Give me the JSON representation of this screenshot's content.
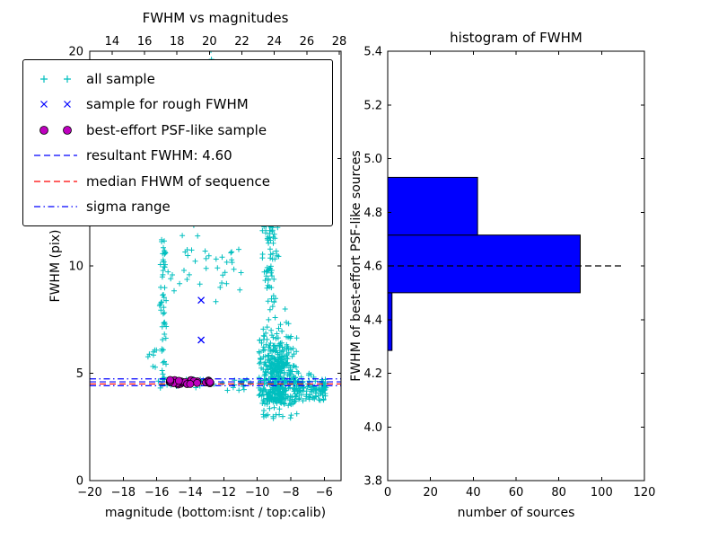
{
  "colors": {
    "all_sample": "#00bfbf",
    "rough_sample": "#0000ff",
    "psf_fill": "#bf00bf",
    "psf_edge": "#000000",
    "hist_fill": "#0000ff",
    "hist_edge": "#000000",
    "axis": "#000000"
  },
  "legend": {
    "items": [
      {
        "label": "all sample",
        "marker": "plus",
        "color": "#00bfbf"
      },
      {
        "label": "sample for rough FWHM",
        "marker": "cross",
        "color": "#0000ff"
      },
      {
        "label": "best-effort PSF-like sample",
        "marker": "circle",
        "color": "#bf00bf"
      },
      {
        "label": "resultant FWHM: 4.60",
        "marker": "dashed",
        "color": "#0000ff"
      },
      {
        "label": "median FHWM of sequence",
        "marker": "dashed",
        "color": "#ff0000"
      },
      {
        "label": "sigma range",
        "marker": "dashdot",
        "color": "#0000ff"
      }
    ]
  },
  "chart_data": [
    {
      "type": "scatter",
      "title": "FWHM vs magnitudes",
      "xlabel": "magnitude (bottom:isnt / top:calib)",
      "ylabel": "FWHM (pix)",
      "x_range": [
        -20,
        -5
      ],
      "y_range": [
        0,
        20
      ],
      "top_range": [
        12.62,
        28.11
      ],
      "x_ticks": {
        "values": [
          -20,
          -18,
          -16,
          -14,
          -12,
          -10,
          -8,
          -6
        ],
        "labels": [
          "−20",
          "−18",
          "−16",
          "−14",
          "−12",
          "−10",
          "−8",
          "−6"
        ]
      },
      "y_ticks": {
        "values": [
          0,
          5,
          10,
          15,
          20
        ],
        "labels": [
          "0",
          "5",
          "10",
          "15",
          "20"
        ]
      },
      "top_ticks": {
        "values": [
          14,
          16,
          18,
          20,
          22,
          24,
          26,
          28
        ],
        "labels": [
          "14",
          "16",
          "18",
          "20",
          "22",
          "24",
          "26",
          "28"
        ]
      },
      "hlines": [
        {
          "name": "resultant-fwhm",
          "y": 4.6,
          "style": "dashed",
          "color": "#0000ff"
        },
        {
          "name": "median-fwhm",
          "y": 4.5,
          "style": "dashed",
          "color": "#ff0000"
        },
        {
          "name": "sigma-low",
          "y": 4.42,
          "style": "dashdot",
          "color": "#0000ff"
        },
        {
          "name": "sigma-high",
          "y": 4.74,
          "style": "dashdot",
          "color": "#0000ff"
        }
      ],
      "series": [
        {
          "name": "all sample",
          "marker": "plus",
          "color": "#00bfbf",
          "clusters": [
            {
              "count": 55,
              "mag": {
                "c": -15.62,
                "sd": 0.09,
                "min": -15.85,
                "max": -15.38
              },
              "fwhm": [
                4.35,
                11.6
              ]
            },
            {
              "count": 8,
              "mag": [
                -16.6,
                -15.85
              ],
              "fwhm": [
                4.6,
                6.6
              ]
            },
            {
              "count": 50,
              "mag": [
                -15.9,
                -10.6
              ],
              "fwhm": [
                8.2,
                12.6
              ]
            },
            {
              "count": 40,
              "mag": [
                -16.3,
                -10.4
              ],
              "fwhm": {
                "c": 4.5,
                "sd": 0.13,
                "min": 4.2,
                "max": 4.85
              }
            },
            {
              "count": 7,
              "mag": [
                -13.2,
                -9.2
              ],
              "fwhm": [
                19.3,
                20.05
              ]
            },
            {
              "count": 85,
              "mag": {
                "c": -9.2,
                "sd": 0.25,
                "min": -9.8,
                "max": -8.65
              },
              "fwhm": [
                7.8,
                12.9
              ]
            },
            {
              "count": 9,
              "mag": [
                -9.6,
                -8.9
              ],
              "fwhm": [
                12.9,
                16.3
              ]
            },
            {
              "count": 430,
              "mag": {
                "c": -8.8,
                "sd": 0.55,
                "min": -9.9,
                "max": -7.2
              },
              "fwhm": {
                "c": 4.9,
                "sd": 1.1,
                "min": 3.55,
                "max": 8.2
              }
            },
            {
              "count": 120,
              "mag": [
                -7.9,
                -5.85
              ],
              "fwhm": {
                "c": 4.25,
                "sd": 0.28,
                "min": 3.7,
                "max": 5.05
              }
            },
            {
              "count": 20,
              "mag": [
                -9.8,
                -7.6
              ],
              "fwhm": [
                2.9,
                3.6
              ]
            }
          ]
        },
        {
          "name": "sample for rough FWHM",
          "marker": "cross",
          "color": "#0000ff",
          "points": [
            [
              -13.35,
              8.4
            ],
            [
              -13.35,
              6.55
            ]
          ]
        },
        {
          "name": "best-effort PSF-like sample",
          "marker": "circle",
          "color": "#bf00bf",
          "clusters": [
            {
              "count": 26,
              "mag": [
                -15.3,
                -12.7
              ],
              "fwhm": {
                "c": 4.58,
                "sd": 0.07,
                "min": 4.45,
                "max": 4.72
              }
            }
          ]
        }
      ]
    },
    {
      "type": "bar",
      "orientation": "horizontal",
      "title": "histogram of FWHM",
      "xlabel": "number of sources",
      "ylabel": "FWHM of best-effort PSF-like sources",
      "x_range": [
        0,
        120
      ],
      "y_range": [
        3.8,
        5.4
      ],
      "x_ticks": {
        "values": [
          0,
          20,
          40,
          60,
          80,
          100,
          120
        ],
        "labels": [
          "0",
          "20",
          "40",
          "60",
          "80",
          "100",
          "120"
        ]
      },
      "y_ticks": {
        "values": [
          3.8,
          4.0,
          4.2,
          4.4,
          4.6,
          4.8,
          5.0,
          5.2,
          5.4
        ],
        "labels": [
          "3.8",
          "4.0",
          "4.2",
          "4.4",
          "4.6",
          "4.8",
          "5.0",
          "5.2",
          "5.4"
        ]
      },
      "bins": {
        "edges": [
          4.285,
          4.5,
          4.715,
          4.93
        ],
        "counts": [
          2,
          90,
          42
        ]
      },
      "dashed_line": {
        "y": 4.6,
        "x_start": 0,
        "x_end": 110,
        "color": "#000000"
      }
    }
  ]
}
